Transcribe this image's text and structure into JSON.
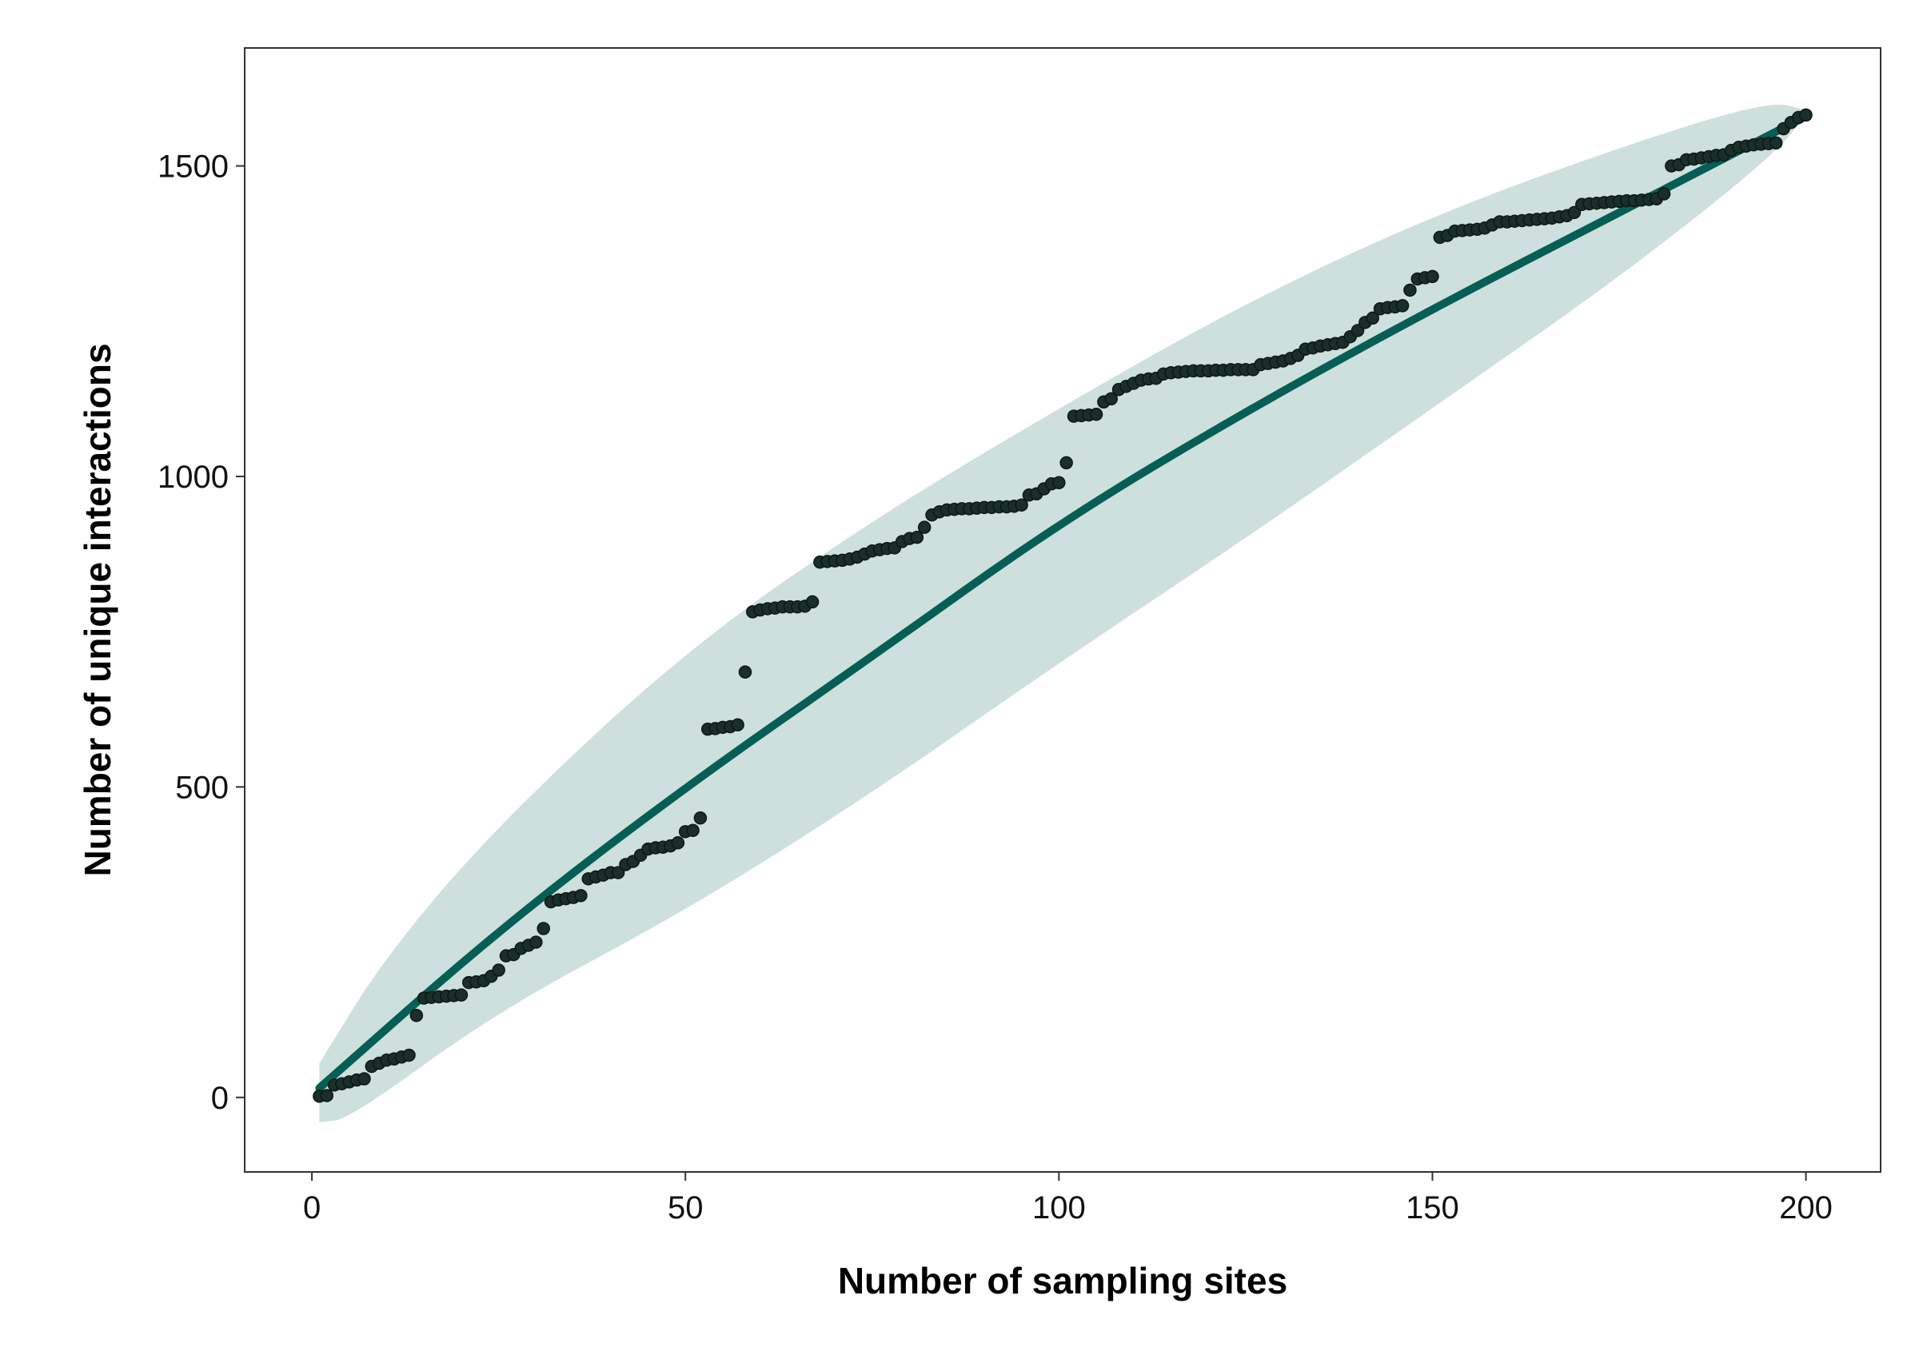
{
  "chart_data": {
    "type": "scatter",
    "title": "",
    "xlabel": "Number of sampling sites",
    "ylabel": "Number of unique interactions",
    "xlim": [
      -9,
      210
    ],
    "ylim": [
      -120,
      1690
    ],
    "x_ticks": [
      0,
      50,
      100,
      150,
      200
    ],
    "y_ticks": [
      0,
      500,
      1000,
      1500
    ],
    "grid": false,
    "legend": "none",
    "colors": {
      "points": "#1a2e2a",
      "fit_line": "#065e54",
      "ribbon": "#cde0dd",
      "panel_border": "#333333",
      "axis_text": "#111111"
    },
    "series": [
      {
        "type": "scatter",
        "points": [
          [
            1,
            2
          ],
          [
            2,
            3
          ],
          [
            3,
            20
          ],
          [
            4,
            22
          ],
          [
            5,
            25
          ],
          [
            6,
            28
          ],
          [
            7,
            30
          ],
          [
            8,
            50
          ],
          [
            9,
            55
          ],
          [
            10,
            60
          ],
          [
            11,
            62
          ],
          [
            12,
            65
          ],
          [
            13,
            68
          ],
          [
            14,
            132
          ],
          [
            15,
            160
          ],
          [
            16,
            161
          ],
          [
            17,
            162
          ],
          [
            18,
            163
          ],
          [
            19,
            164
          ],
          [
            20,
            165
          ],
          [
            21,
            185
          ],
          [
            22,
            186
          ],
          [
            23,
            188
          ],
          [
            24,
            195
          ],
          [
            25,
            205
          ],
          [
            26,
            228
          ],
          [
            27,
            230
          ],
          [
            28,
            240
          ],
          [
            29,
            245
          ],
          [
            30,
            250
          ],
          [
            31,
            272
          ],
          [
            32,
            315
          ],
          [
            33,
            318
          ],
          [
            34,
            320
          ],
          [
            35,
            322
          ],
          [
            36,
            325
          ],
          [
            37,
            352
          ],
          [
            38,
            355
          ],
          [
            39,
            358
          ],
          [
            40,
            362
          ],
          [
            41,
            362
          ],
          [
            42,
            375
          ],
          [
            43,
            380
          ],
          [
            44,
            390
          ],
          [
            45,
            400
          ],
          [
            46,
            402
          ],
          [
            47,
            403
          ],
          [
            48,
            405
          ],
          [
            49,
            410
          ],
          [
            50,
            428
          ],
          [
            51,
            430
          ],
          [
            52,
            450
          ],
          [
            53,
            593
          ],
          [
            54,
            594
          ],
          [
            55,
            596
          ],
          [
            56,
            597
          ],
          [
            57,
            600
          ],
          [
            58,
            685
          ],
          [
            59,
            782
          ],
          [
            60,
            785
          ],
          [
            61,
            787
          ],
          [
            62,
            788
          ],
          [
            63,
            790
          ],
          [
            64,
            790
          ],
          [
            65,
            790
          ],
          [
            66,
            791
          ],
          [
            67,
            798
          ],
          [
            68,
            862
          ],
          [
            69,
            863
          ],
          [
            70,
            864
          ],
          [
            71,
            865
          ],
          [
            72,
            867
          ],
          [
            73,
            870
          ],
          [
            74,
            875
          ],
          [
            75,
            880
          ],
          [
            76,
            882
          ],
          [
            77,
            884
          ],
          [
            78,
            885
          ],
          [
            79,
            895
          ],
          [
            80,
            900
          ],
          [
            81,
            902
          ],
          [
            82,
            918
          ],
          [
            83,
            938
          ],
          [
            84,
            943
          ],
          [
            85,
            946
          ],
          [
            86,
            947
          ],
          [
            87,
            948
          ],
          [
            88,
            948
          ],
          [
            89,
            949
          ],
          [
            90,
            950
          ],
          [
            91,
            950
          ],
          [
            92,
            951
          ],
          [
            93,
            951
          ],
          [
            94,
            952
          ],
          [
            95,
            954
          ],
          [
            96,
            970
          ],
          [
            97,
            972
          ],
          [
            98,
            980
          ],
          [
            99,
            988
          ],
          [
            100,
            990
          ],
          [
            101,
            1022
          ],
          [
            102,
            1097
          ],
          [
            103,
            1098
          ],
          [
            104,
            1099
          ],
          [
            105,
            1100
          ],
          [
            106,
            1120
          ],
          [
            107,
            1125
          ],
          [
            108,
            1140
          ],
          [
            109,
            1145
          ],
          [
            110,
            1150
          ],
          [
            111,
            1155
          ],
          [
            112,
            1157
          ],
          [
            113,
            1158
          ],
          [
            114,
            1165
          ],
          [
            115,
            1167
          ],
          [
            116,
            1168
          ],
          [
            117,
            1169
          ],
          [
            118,
            1170
          ],
          [
            119,
            1170
          ],
          [
            120,
            1170
          ],
          [
            121,
            1171
          ],
          [
            122,
            1171
          ],
          [
            123,
            1172
          ],
          [
            124,
            1172
          ],
          [
            125,
            1172
          ],
          [
            126,
            1172
          ],
          [
            127,
            1180
          ],
          [
            128,
            1182
          ],
          [
            129,
            1184
          ],
          [
            130,
            1186
          ],
          [
            131,
            1190
          ],
          [
            132,
            1195
          ],
          [
            133,
            1205
          ],
          [
            134,
            1207
          ],
          [
            135,
            1210
          ],
          [
            136,
            1212
          ],
          [
            137,
            1214
          ],
          [
            138,
            1216
          ],
          [
            139,
            1225
          ],
          [
            140,
            1235
          ],
          [
            141,
            1248
          ],
          [
            142,
            1255
          ],
          [
            143,
            1270
          ],
          [
            144,
            1272
          ],
          [
            145,
            1273
          ],
          [
            146,
            1275
          ],
          [
            147,
            1300
          ],
          [
            148,
            1318
          ],
          [
            149,
            1320
          ],
          [
            150,
            1322
          ],
          [
            151,
            1385
          ],
          [
            152,
            1388
          ],
          [
            153,
            1395
          ],
          [
            154,
            1396
          ],
          [
            155,
            1397
          ],
          [
            156,
            1398
          ],
          [
            157,
            1400
          ],
          [
            158,
            1405
          ],
          [
            159,
            1410
          ],
          [
            160,
            1410
          ],
          [
            161,
            1411
          ],
          [
            162,
            1412
          ],
          [
            163,
            1413
          ],
          [
            164,
            1414
          ],
          [
            165,
            1415
          ],
          [
            166,
            1416
          ],
          [
            167,
            1418
          ],
          [
            168,
            1420
          ],
          [
            169,
            1425
          ],
          [
            170,
            1438
          ],
          [
            171,
            1439
          ],
          [
            172,
            1440
          ],
          [
            173,
            1441
          ],
          [
            174,
            1442
          ],
          [
            175,
            1443
          ],
          [
            176,
            1444
          ],
          [
            177,
            1444
          ],
          [
            178,
            1445
          ],
          [
            179,
            1446
          ],
          [
            180,
            1447
          ],
          [
            181,
            1455
          ],
          [
            182,
            1500
          ],
          [
            183,
            1502
          ],
          [
            184,
            1510
          ],
          [
            185,
            1511
          ],
          [
            186,
            1513
          ],
          [
            187,
            1515
          ],
          [
            188,
            1517
          ],
          [
            189,
            1518
          ],
          [
            190,
            1525
          ],
          [
            191,
            1530
          ],
          [
            192,
            1532
          ],
          [
            193,
            1534
          ],
          [
            194,
            1535
          ],
          [
            195,
            1536
          ],
          [
            196,
            1537
          ],
          [
            197,
            1560
          ],
          [
            198,
            1570
          ],
          [
            199,
            1578
          ],
          [
            200,
            1582
          ]
        ]
      },
      {
        "type": "line",
        "points": [
          [
            1,
            15
          ],
          [
            25,
            270
          ],
          [
            50,
            500
          ],
          [
            75,
            710
          ],
          [
            100,
            925
          ],
          [
            125,
            1105
          ],
          [
            150,
            1270
          ],
          [
            175,
            1425
          ],
          [
            200,
            1580
          ]
        ]
      },
      {
        "type": "area",
        "upper": [
          [
            1,
            55
          ],
          [
            10,
            230
          ],
          [
            25,
            440
          ],
          [
            50,
            720
          ],
          [
            75,
            930
          ],
          [
            100,
            1110
          ],
          [
            125,
            1280
          ],
          [
            150,
            1420
          ],
          [
            175,
            1530
          ],
          [
            195,
            1605
          ],
          [
            200,
            1590
          ]
        ],
        "lower": [
          [
            1,
            -40
          ],
          [
            5,
            -35
          ],
          [
            25,
            140
          ],
          [
            50,
            300
          ],
          [
            75,
            490
          ],
          [
            100,
            700
          ],
          [
            125,
            900
          ],
          [
            150,
            1110
          ],
          [
            175,
            1320
          ],
          [
            195,
            1510
          ],
          [
            200,
            1580
          ]
        ]
      }
    ]
  }
}
